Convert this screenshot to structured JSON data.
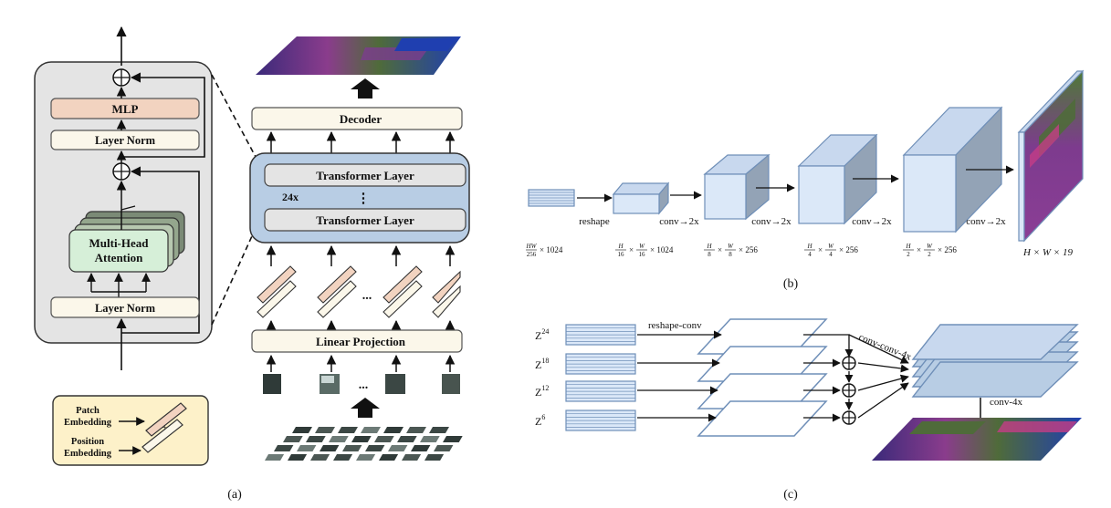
{
  "panel_a": {
    "caption": "(a)",
    "block": {
      "mlp": "MLP",
      "layer_norm_top": "Layer Norm",
      "attention_line1": "Multi-Head",
      "attention_line2": "Attention",
      "layer_norm_bottom": "Layer Norm"
    },
    "encoder": {
      "decoder": "Decoder",
      "transformer_layer_top": "Transformer Layer",
      "repeat": "24x",
      "ellipsis": "⋮",
      "transformer_layer_bottom": "Transformer Layer",
      "linear_projection": "Linear Projection",
      "dots": "..."
    },
    "legend": {
      "patch_line1": "Patch",
      "patch_line2": "Embedding",
      "position_line1": "Position",
      "position_line2": "Embedding"
    }
  },
  "panel_b": {
    "caption": "(b)",
    "ops": [
      "reshape",
      "conv→2x",
      "conv→2x",
      "conv→2x",
      "conv→2x"
    ],
    "dims": [
      {
        "num": "HW",
        "den": "256",
        "rest": "× 1024"
      },
      {
        "num": "H",
        "den": "16",
        "mid": "×",
        "num2": "W",
        "den2": "16",
        "rest": "× 1024"
      },
      {
        "num": "H",
        "den": "8",
        "mid": "×",
        "num2": "W",
        "den2": "8",
        "rest": "× 256"
      },
      {
        "num": "H",
        "den": "4",
        "mid": "×",
        "num2": "W",
        "den2": "4",
        "rest": "× 256"
      },
      {
        "num": "H",
        "den": "2",
        "mid": "×",
        "num2": "W",
        "den2": "2",
        "rest": "× 256"
      }
    ],
    "output_dim": "H × W × 19"
  },
  "panel_c": {
    "caption": "(c)",
    "reshape_label": "reshape-conv",
    "fuse_label": "conv-conv-4x",
    "final_label": "conv-4x",
    "features": [
      {
        "base": "Z",
        "sup": "24"
      },
      {
        "base": "Z",
        "sup": "18"
      },
      {
        "base": "Z",
        "sup": "12"
      },
      {
        "base": "Z",
        "sup": "6"
      }
    ]
  },
  "colors": {
    "mlp_fill": "#f2d3c0",
    "norm_fill": "#fbf7ea",
    "attention_fill": "#d6efd8",
    "block_bg": "#e4e4e4",
    "encoder_fill": "#b8cde4",
    "box_stroke": "#6f8fb8",
    "legend_fill": "#fdf1c9"
  }
}
